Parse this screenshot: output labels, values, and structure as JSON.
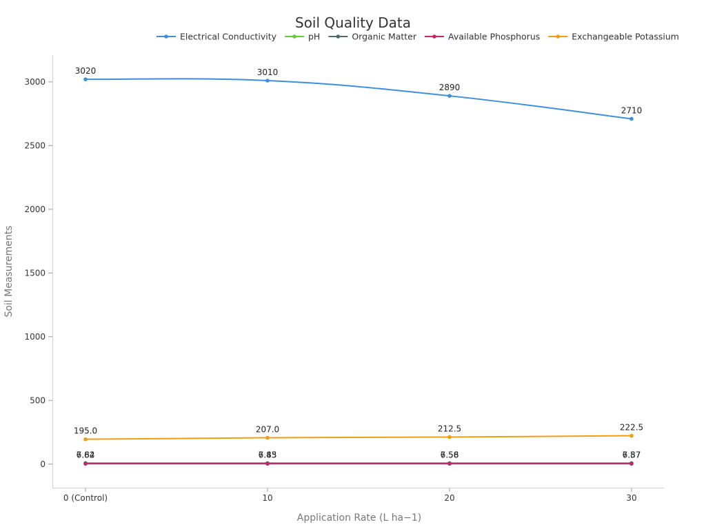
{
  "chart_data": {
    "type": "line",
    "title": "Soil Quality Data",
    "xlabel": "Application Rate (L ha−1)",
    "ylabel": "Soil Measurements",
    "categories": [
      "0 (Control)",
      "10",
      "20",
      "30"
    ],
    "ylim": [
      -185,
      3210
    ],
    "yticks": [
      0,
      500,
      1000,
      1500,
      2000,
      2500,
      3000
    ],
    "grid": false,
    "legend_position": "top",
    "smooth": true,
    "series": [
      {
        "name": "Electrical Conductivity",
        "color": "#3a8fdf",
        "values": [
          3020,
          3010,
          2890,
          2710
        ],
        "labels": [
          "3020",
          "3010",
          "2890",
          "2710"
        ]
      },
      {
        "name": "pH",
        "color": "#66cc33",
        "values": [
          7.84,
          7.45,
          7.56,
          7.57
        ],
        "labels": [
          "7.84",
          "7.45",
          "7.56",
          "7.57"
        ]
      },
      {
        "name": "Organic Matter",
        "color": "#4f6a6a",
        "values": [
          6.62,
          6.83,
          6.58,
          6.87
        ],
        "labels": [
          "6.62",
          "6.83",
          "6.58",
          "6.87"
        ]
      },
      {
        "name": "Available Phosphorus",
        "color": "#c8246a",
        "values": [
          3.0,
          2.9,
          2.8,
          3.0
        ],
        "labels": [
          "",
          "",
          "",
          ""
        ]
      },
      {
        "name": "Exchangeable Potassium",
        "color": "#f39c12",
        "values": [
          195.0,
          207.0,
          212.5,
          222.5
        ],
        "labels": [
          "195.0",
          "207.0",
          "212.5",
          "222.5"
        ]
      }
    ]
  }
}
